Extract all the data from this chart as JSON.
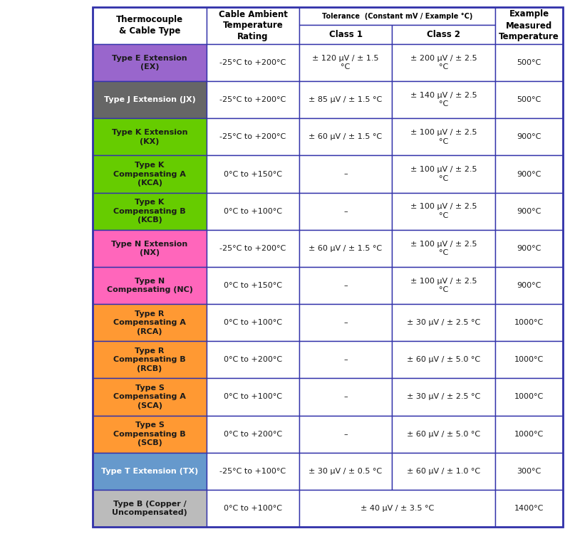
{
  "border_color": "#3333AA",
  "rows": [
    {
      "name": "Type E Extension\n(EX)",
      "bg": "#9966CC",
      "temp_range": "-25°C to +200°C",
      "class1": "± 120 µV / ± 1.5\n°C",
      "class2": "± 200 µV / ± 2.5\n°C",
      "example": "500°C",
      "merge_class": false
    },
    {
      "name": "Type J Extension (JX)",
      "bg": "#666666",
      "temp_range": "-25°C to +200°C",
      "class1": "± 85 µV / ± 1.5 °C",
      "class2": "± 140 µV / ± 2.5\n°C",
      "example": "500°C",
      "merge_class": false
    },
    {
      "name": "Type K Extension\n(KX)",
      "bg": "#66CC00",
      "temp_range": "-25°C to +200°C",
      "class1": "± 60 µV / ± 1.5 °C",
      "class2": "± 100 µV / ± 2.5\n°C",
      "example": "900°C",
      "merge_class": false
    },
    {
      "name": "Type K\nCompensating A\n(KCA)",
      "bg": "#66CC00",
      "temp_range": "0°C to +150°C",
      "class1": "–",
      "class2": "± 100 µV / ± 2.5\n°C",
      "example": "900°C",
      "merge_class": false
    },
    {
      "name": "Type K\nCompensating B\n(KCB)",
      "bg": "#66CC00",
      "temp_range": "0°C to +100°C",
      "class1": "–",
      "class2": "± 100 µV / ± 2.5\n°C",
      "example": "900°C",
      "merge_class": false
    },
    {
      "name": "Type N Extension\n(NX)",
      "bg": "#FF66BB",
      "temp_range": "-25°C to +200°C",
      "class1": "± 60 µV / ± 1.5 °C",
      "class2": "± 100 µV / ± 2.5\n°C",
      "example": "900°C",
      "merge_class": false
    },
    {
      "name": "Type N\nCompensating (NC)",
      "bg": "#FF66BB",
      "temp_range": "0°C to +150°C",
      "class1": "–",
      "class2": "± 100 µV / ± 2.5\n°C",
      "example": "900°C",
      "merge_class": false
    },
    {
      "name": "Type R\nCompensating A\n(RCA)",
      "bg": "#FF9933",
      "temp_range": "0°C to +100°C",
      "class1": "–",
      "class2": "± 30 µV / ± 2.5 °C",
      "example": "1000°C",
      "merge_class": false
    },
    {
      "name": "Type R\nCompensating B\n(RCB)",
      "bg": "#FF9933",
      "temp_range": "0°C to +200°C",
      "class1": "–",
      "class2": "± 60 µV / ± 5.0 °C",
      "example": "1000°C",
      "merge_class": false
    },
    {
      "name": "Type S\nCompensating A\n(SCA)",
      "bg": "#FF9933",
      "temp_range": "0°C to +100°C",
      "class1": "–",
      "class2": "± 30 µV / ± 2.5 °C",
      "example": "1000°C",
      "merge_class": false
    },
    {
      "name": "Type S\nCompensating B\n(SCB)",
      "bg": "#FF9933",
      "temp_range": "0°C to +200°C",
      "class1": "–",
      "class2": "± 60 µV / ± 5.0 °C",
      "example": "1000°C",
      "merge_class": false
    },
    {
      "name": "Type T Extension (TX)",
      "bg": "#6699CC",
      "temp_range": "-25°C to +100°C",
      "class1": "± 30 µV / ± 0.5 °C",
      "class2": "± 60 µV / ± 1.0 °C",
      "example": "300°C",
      "merge_class": false
    },
    {
      "name": "Type B (Copper /\nUncompensated)",
      "bg": "#BBBBBB",
      "temp_range": "0°C to +100°C",
      "class1": "",
      "class2": "± 40 µV / ± 3.5 °C",
      "example": "1400°C",
      "merge_class": true
    }
  ]
}
